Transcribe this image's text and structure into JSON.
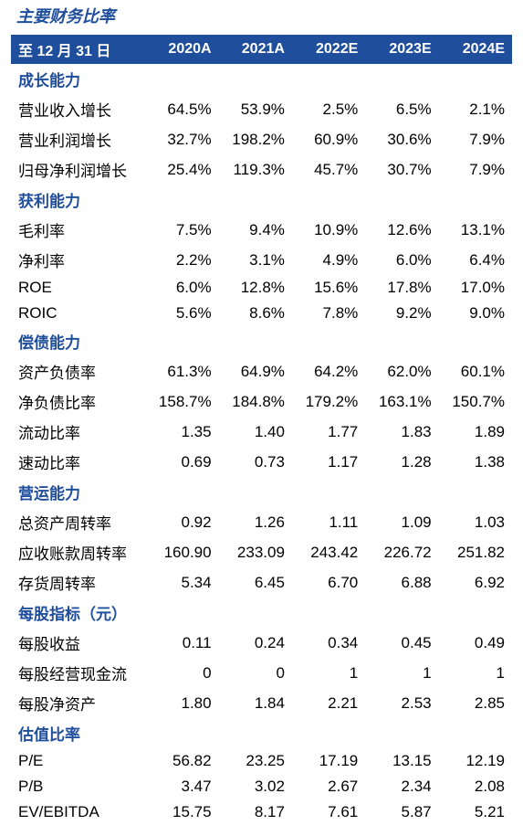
{
  "title": "主要财务比率",
  "header": {
    "label": "至 12 月 31 日",
    "columns": [
      "2020A",
      "2021A",
      "2022E",
      "2023E",
      "2024E"
    ]
  },
  "sections": [
    {
      "name": "成长能力",
      "rows": [
        {
          "label": "营业收入增长",
          "values": [
            "64.5%",
            "53.9%",
            "2.5%",
            "6.5%",
            "2.1%"
          ]
        },
        {
          "label": "营业利润增长",
          "values": [
            "32.7%",
            "198.2%",
            "60.9%",
            "30.6%",
            "7.9%"
          ]
        },
        {
          "label": "归母净利润增长",
          "values": [
            "25.4%",
            "119.3%",
            "45.7%",
            "30.7%",
            "7.9%"
          ]
        }
      ]
    },
    {
      "name": "获利能力",
      "rows": [
        {
          "label": "毛利率",
          "values": [
            "7.5%",
            "9.4%",
            "10.9%",
            "12.6%",
            "13.1%"
          ]
        },
        {
          "label": "净利率",
          "values": [
            "2.2%",
            "3.1%",
            "4.9%",
            "6.0%",
            "6.4%"
          ]
        },
        {
          "label": "ROE",
          "values": [
            "6.0%",
            "12.8%",
            "15.6%",
            "17.8%",
            "17.0%"
          ]
        },
        {
          "label": "ROIC",
          "values": [
            "5.6%",
            "8.6%",
            "7.8%",
            "9.2%",
            "9.0%"
          ]
        }
      ]
    },
    {
      "name": "偿债能力",
      "rows": [
        {
          "label": "资产负债率",
          "values": [
            "61.3%",
            "64.9%",
            "64.2%",
            "62.0%",
            "60.1%"
          ]
        },
        {
          "label": "净负债比率",
          "values": [
            "158.7%",
            "184.8%",
            "179.2%",
            "163.1%",
            "150.7%"
          ]
        },
        {
          "label": "流动比率",
          "values": [
            "1.35",
            "1.40",
            "1.77",
            "1.83",
            "1.89"
          ]
        },
        {
          "label": "速动比率",
          "values": [
            "0.69",
            "0.73",
            "1.17",
            "1.28",
            "1.38"
          ]
        }
      ]
    },
    {
      "name": "营运能力",
      "rows": [
        {
          "label": "总资产周转率",
          "values": [
            "0.92",
            "1.26",
            "1.11",
            "1.09",
            "1.03"
          ]
        },
        {
          "label": "应收账款周转率",
          "values": [
            "160.90",
            "233.09",
            "243.42",
            "226.72",
            "251.82"
          ]
        },
        {
          "label": "存货周转率",
          "values": [
            "5.34",
            "6.45",
            "6.70",
            "6.88",
            "6.92"
          ]
        }
      ]
    },
    {
      "name": "每股指标（元）",
      "rows": [
        {
          "label": "每股收益",
          "values": [
            "0.11",
            "0.24",
            "0.34",
            "0.45",
            "0.49"
          ]
        },
        {
          "label": "每股经营现金流",
          "values": [
            "0",
            "0",
            "1",
            "1",
            "1"
          ]
        },
        {
          "label": "每股净资产",
          "values": [
            "1.80",
            "1.84",
            "2.21",
            "2.53",
            "2.85"
          ]
        }
      ]
    },
    {
      "name": "估值比率",
      "rows": [
        {
          "label": "P/E",
          "values": [
            "56.82",
            "23.25",
            "17.19",
            "13.15",
            "12.19"
          ]
        },
        {
          "label": "P/B",
          "values": [
            "3.47",
            "3.02",
            "2.67",
            "2.34",
            "2.08"
          ]
        },
        {
          "label": "EV/EBITDA",
          "values": [
            "15.75",
            "8.17",
            "7.61",
            "5.87",
            "5.21"
          ]
        }
      ]
    }
  ]
}
